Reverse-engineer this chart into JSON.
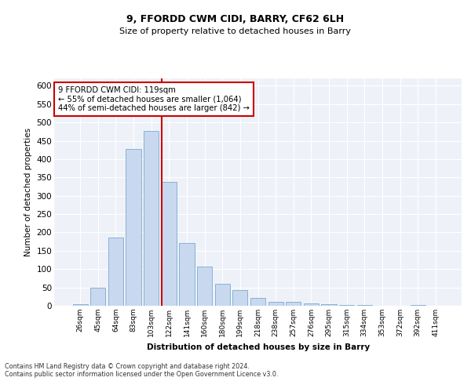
{
  "title1": "9, FFORDD CWM CIDI, BARRY, CF62 6LH",
  "title2": "Size of property relative to detached houses in Barry",
  "xlabel": "Distribution of detached houses by size in Barry",
  "ylabel": "Number of detached properties",
  "categories": [
    "26sqm",
    "45sqm",
    "64sqm",
    "83sqm",
    "103sqm",
    "122sqm",
    "141sqm",
    "160sqm",
    "180sqm",
    "199sqm",
    "218sqm",
    "238sqm",
    "257sqm",
    "276sqm",
    "295sqm",
    "315sqm",
    "334sqm",
    "353sqm",
    "372sqm",
    "392sqm",
    "411sqm"
  ],
  "values": [
    5,
    50,
    186,
    428,
    476,
    338,
    172,
    107,
    60,
    43,
    22,
    10,
    10,
    7,
    5,
    2,
    2,
    1,
    1,
    2,
    1
  ],
  "bar_color": "#c8d8ee",
  "bar_edge_color": "#7aaad0",
  "vline_color": "#cc0000",
  "annotation_text": "9 FFORDD CWM CIDI: 119sqm\n← 55% of detached houses are smaller (1,064)\n44% of semi-detached houses are larger (842) →",
  "annotation_box_color": "#ffffff",
  "annotation_box_edge": "#cc0000",
  "ylim": [
    0,
    620
  ],
  "yticks": [
    0,
    50,
    100,
    150,
    200,
    250,
    300,
    350,
    400,
    450,
    500,
    550,
    600
  ],
  "footer": "Contains HM Land Registry data © Crown copyright and database right 2024.\nContains public sector information licensed under the Open Government Licence v3.0.",
  "bg_color": "#ffffff",
  "plot_bg_color": "#eef2f8"
}
